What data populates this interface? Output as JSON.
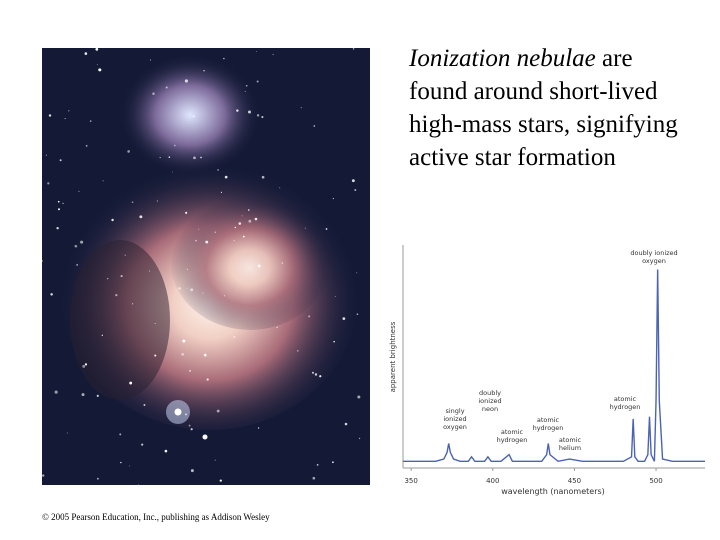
{
  "slide": {
    "text": {
      "emphasis": "Ionization nebulae",
      "rest": "are found around short-lived high-mass stars, signifying active star formation"
    },
    "copyright": "© 2005 Pearson Education, Inc., publishing as Addison Wesley"
  },
  "chart_data": {
    "type": "line",
    "x_label": "wavelength (nanometers)",
    "y_label": "apparent brightness",
    "color": "#4a63b5",
    "xlim": [
      345,
      530
    ],
    "xticks": [
      350,
      400,
      450,
      500
    ],
    "ylim": [
      0,
      100
    ],
    "x": [
      345,
      350,
      360,
      365,
      370,
      372,
      373,
      374,
      376,
      380,
      385,
      387,
      389,
      395,
      397,
      399,
      405,
      410,
      412,
      420,
      430,
      433,
      434,
      435,
      440,
      447,
      455,
      470,
      480,
      485,
      486,
      487,
      489,
      493,
      495,
      496,
      497,
      499,
      500,
      501,
      502,
      504,
      510,
      520,
      530
    ],
    "values": [
      3,
      3,
      3,
      3,
      4,
      7,
      11,
      7,
      4,
      3,
      3,
      5,
      3,
      3,
      5,
      3,
      3,
      6,
      3,
      3,
      3,
      6,
      11,
      6,
      3,
      4,
      3,
      3,
      3,
      5,
      22,
      5,
      3,
      3,
      6,
      23,
      6,
      3,
      30,
      89,
      30,
      4,
      3,
      3,
      3
    ],
    "annotations": [
      [
        "doubly ionized",
        "oxygen"
      ],
      [
        "singly",
        "ionized",
        "oxygen"
      ],
      [
        "doubly",
        "ionized",
        "neon"
      ],
      [
        "atomic",
        "hydrogen"
      ],
      [
        "atomic",
        "hydrogen"
      ],
      [
        "atomic",
        "helium"
      ],
      [
        "atomic",
        "hydrogen"
      ]
    ]
  }
}
